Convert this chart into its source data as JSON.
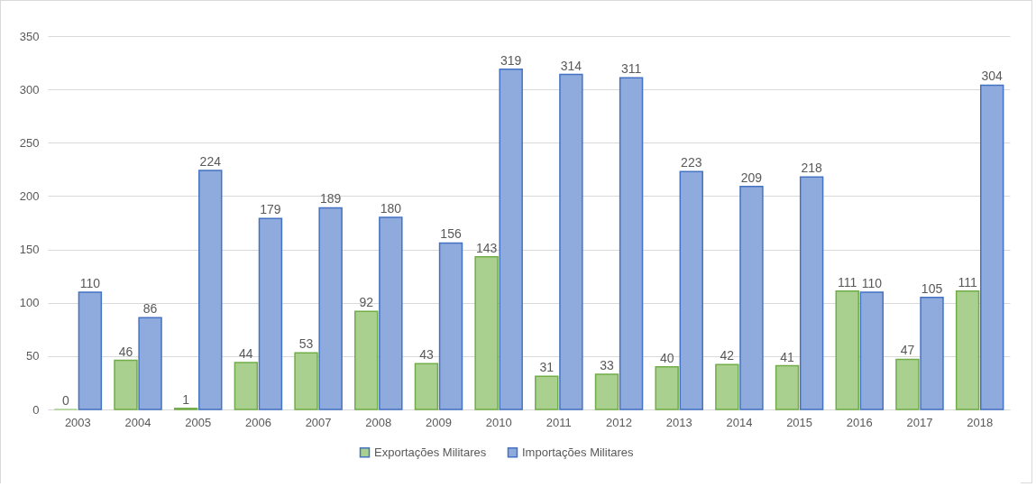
{
  "chart_data": {
    "type": "bar",
    "categories": [
      "2003",
      "2004",
      "2005",
      "2006",
      "2007",
      "2008",
      "2009",
      "2010",
      "2011",
      "2012",
      "2013",
      "2014",
      "2015",
      "2016",
      "2017",
      "2018"
    ],
    "series": [
      {
        "name": "Exportações Militares",
        "color": "#a9d08e",
        "values": [
          0,
          46,
          1,
          44,
          53,
          92,
          43,
          143,
          31,
          33,
          40,
          42,
          41,
          111,
          47,
          111
        ]
      },
      {
        "name": "Importações Militares",
        "color": "#8faadc",
        "values": [
          110,
          86,
          224,
          179,
          189,
          180,
          156,
          319,
          314,
          311,
          223,
          209,
          218,
          110,
          105,
          304
        ]
      }
    ],
    "ylim": [
      0,
      350
    ],
    "yticks": [
      0,
      50,
      100,
      150,
      200,
      250,
      300,
      350
    ],
    "grid": "y",
    "legend": "bottom",
    "data_labels": true
  }
}
